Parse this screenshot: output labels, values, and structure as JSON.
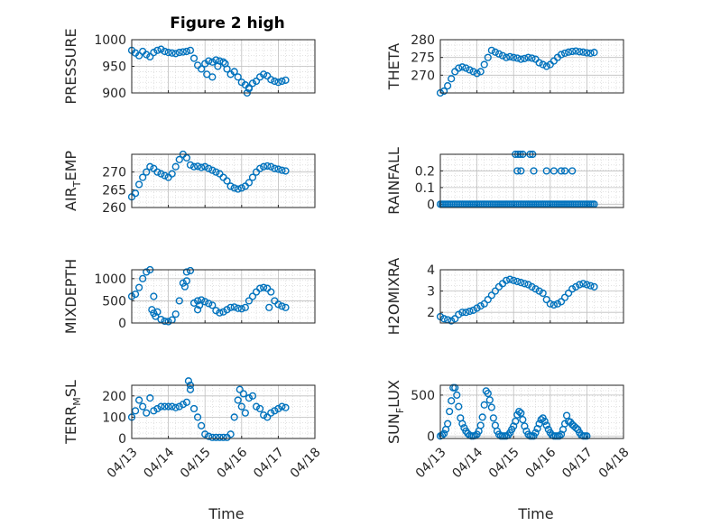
{
  "figure": {
    "title": "Figure 2 high",
    "xlabel": "Time",
    "marker_color": "#0072BD",
    "grid_color": "#bfbfbf",
    "x_tick_labels": [
      "04/13",
      "04/14",
      "04/15",
      "04/16",
      "04/17",
      "04/18"
    ]
  },
  "chart_data": [
    {
      "type": "scatter",
      "name": "pressure",
      "ylabel": "PRESSURE",
      "ylim": [
        900,
        1000
      ],
      "yticks": [
        900,
        950,
        1000
      ],
      "xlim": [
        0,
        5
      ],
      "grid": true,
      "x": [
        0.0,
        0.1,
        0.2,
        0.3,
        0.4,
        0.5,
        0.6,
        0.7,
        0.8,
        0.9,
        1.0,
        1.1,
        1.2,
        1.3,
        1.4,
        1.5,
        1.6,
        1.7,
        1.8,
        1.9,
        2.0,
        2.1,
        2.2,
        2.3,
        2.4,
        2.5,
        2.6,
        2.7,
        2.8,
        2.9,
        3.0,
        3.1,
        3.2,
        3.3,
        3.4,
        3.5,
        3.6,
        3.7,
        3.8,
        3.9,
        4.0,
        4.1,
        4.2,
        2.05,
        2.2,
        2.35,
        2.55,
        3.15,
        3.2
      ],
      "y": [
        980,
        975,
        970,
        978,
        972,
        968,
        976,
        980,
        982,
        978,
        976,
        975,
        974,
        976,
        977,
        978,
        980,
        965,
        952,
        945,
        955,
        960,
        958,
        962,
        960,
        958,
        945,
        935,
        940,
        930,
        920,
        915,
        910,
        918,
        922,
        930,
        935,
        932,
        925,
        922,
        920,
        922,
        924,
        935,
        930,
        950,
        955,
        900,
        908
      ]
    },
    {
      "type": "scatter",
      "name": "theta",
      "ylabel": "THETA",
      "ylim": [
        265,
        280
      ],
      "yticks": [
        270,
        275,
        280
      ],
      "xlim": [
        0,
        5
      ],
      "grid": true,
      "x": [
        0.0,
        0.1,
        0.2,
        0.3,
        0.4,
        0.5,
        0.6,
        0.7,
        0.8,
        0.9,
        1.0,
        1.1,
        1.2,
        1.3,
        1.4,
        1.5,
        1.6,
        1.7,
        1.8,
        1.9,
        2.0,
        2.1,
        2.2,
        2.3,
        2.4,
        2.5,
        2.6,
        2.7,
        2.8,
        2.9,
        3.0,
        3.1,
        3.2,
        3.3,
        3.4,
        3.5,
        3.6,
        3.7,
        3.8,
        3.9,
        4.0,
        4.1,
        4.2
      ],
      "y": [
        265,
        265.5,
        267,
        269,
        271,
        272,
        272.3,
        272,
        271.5,
        271,
        270.5,
        271,
        273,
        275,
        277,
        276.5,
        276,
        275.5,
        275,
        275.2,
        275,
        274.8,
        274.5,
        274.7,
        275,
        274.8,
        274.5,
        273.5,
        273,
        272.5,
        273,
        274,
        275,
        275.8,
        276.2,
        276.5,
        276.7,
        276.8,
        276.6,
        276.5,
        276.3,
        276.2,
        276.4
      ]
    },
    {
      "type": "scatter",
      "name": "air_temp",
      "ylabel": "AIR",
      "ylabel_sub": "T",
      "ylabel_after": "EMP",
      "ylim": [
        260,
        275
      ],
      "yticks": [
        260,
        265,
        270
      ],
      "xlim": [
        0,
        5
      ],
      "grid": true,
      "x": [
        0.0,
        0.1,
        0.2,
        0.3,
        0.4,
        0.5,
        0.6,
        0.7,
        0.8,
        0.9,
        1.0,
        1.1,
        1.2,
        1.3,
        1.4,
        1.5,
        1.6,
        1.7,
        1.8,
        1.9,
        2.0,
        2.1,
        2.2,
        2.3,
        2.4,
        2.5,
        2.6,
        2.7,
        2.8,
        2.9,
        3.0,
        3.1,
        3.2,
        3.3,
        3.4,
        3.5,
        3.6,
        3.7,
        3.8,
        3.9,
        4.0,
        4.1,
        4.2
      ],
      "y": [
        263,
        264,
        266.5,
        268.5,
        270,
        271.5,
        271,
        270,
        269.5,
        269,
        268.5,
        269.5,
        271.5,
        273.5,
        275,
        274,
        272,
        271.5,
        271.6,
        271.3,
        271.5,
        271,
        270.5,
        270,
        269.5,
        268.5,
        267.5,
        266,
        265.5,
        265.2,
        265.5,
        266,
        267,
        268.5,
        270,
        271,
        271.5,
        271.7,
        271.5,
        271,
        270.8,
        270.5,
        270.3
      ]
    },
    {
      "type": "scatter",
      "name": "rainfall",
      "ylabel": "RAINFALL",
      "ylim": [
        -0.02,
        0.3
      ],
      "yticks": [
        0,
        0.1,
        0.2
      ],
      "ytick_labels": [
        "0",
        "0.1",
        "0.2"
      ],
      "xlim": [
        0,
        5
      ],
      "grid": true,
      "x": [
        0.0,
        0.05,
        0.1,
        0.15,
        0.2,
        0.25,
        0.3,
        0.35,
        0.4,
        0.45,
        0.5,
        0.55,
        0.6,
        0.65,
        0.7,
        0.75,
        0.8,
        0.85,
        0.9,
        0.95,
        1.0,
        1.05,
        1.1,
        1.15,
        1.2,
        1.25,
        1.3,
        1.35,
        1.4,
        1.45,
        1.5,
        1.55,
        1.6,
        1.65,
        1.7,
        1.75,
        1.8,
        1.85,
        1.9,
        1.95,
        2.0,
        2.05,
        2.1,
        2.15,
        2.2,
        2.25,
        2.3,
        2.35,
        2.4,
        2.45,
        2.5,
        2.55,
        2.6,
        2.65,
        2.7,
        2.75,
        2.8,
        2.85,
        2.9,
        2.95,
        3.0,
        3.05,
        3.1,
        3.15,
        3.2,
        3.25,
        3.3,
        3.35,
        3.4,
        3.45,
        3.5,
        3.55,
        3.6,
        3.65,
        3.7,
        3.75,
        3.8,
        3.85,
        3.9,
        3.95,
        4.0,
        4.05,
        4.1,
        4.15,
        4.2,
        2.05,
        2.12,
        2.18,
        2.25,
        2.45,
        2.52,
        2.1,
        2.2,
        2.55,
        2.9,
        3.1,
        3.3,
        3.4,
        3.6
      ],
      "y": [
        0,
        0,
        0,
        0,
        0,
        0,
        0,
        0,
        0,
        0,
        0,
        0,
        0,
        0,
        0,
        0,
        0,
        0,
        0,
        0,
        0,
        0,
        0,
        0,
        0,
        0,
        0,
        0,
        0,
        0,
        0,
        0,
        0,
        0,
        0,
        0,
        0,
        0,
        0,
        0,
        0,
        0,
        0,
        0,
        0,
        0,
        0,
        0,
        0,
        0,
        0,
        0,
        0,
        0,
        0,
        0,
        0,
        0,
        0,
        0,
        0,
        0,
        0,
        0,
        0,
        0,
        0,
        0,
        0,
        0,
        0,
        0,
        0,
        0,
        0,
        0,
        0,
        0,
        0,
        0,
        0,
        0,
        0,
        0,
        0,
        0.3,
        0.3,
        0.3,
        0.3,
        0.3,
        0.3,
        0.2,
        0.2,
        0.2,
        0.2,
        0.2,
        0.2,
        0.2,
        0.2
      ]
    },
    {
      "type": "scatter",
      "name": "mixdepth",
      "ylabel": "MIXDEPTH",
      "ylim": [
        0,
        1200
      ],
      "yticks": [
        0,
        500,
        1000
      ],
      "xlim": [
        0,
        5
      ],
      "grid": true,
      "x": [
        0.0,
        0.1,
        0.2,
        0.3,
        0.4,
        0.5,
        0.6,
        0.7,
        0.8,
        0.9,
        1.0,
        1.1,
        1.2,
        1.3,
        1.4,
        1.5,
        1.6,
        1.7,
        1.8,
        1.9,
        2.0,
        2.1,
        2.2,
        2.3,
        2.4,
        2.5,
        2.6,
        2.7,
        2.8,
        2.9,
        3.0,
        3.1,
        3.2,
        3.3,
        3.4,
        3.5,
        3.6,
        3.7,
        3.8,
        3.9,
        4.0,
        4.1,
        4.2,
        0.55,
        0.6,
        0.65,
        1.45,
        1.5,
        1.8,
        1.85,
        3.75
      ],
      "y": [
        600,
        650,
        800,
        1000,
        1150,
        1200,
        600,
        250,
        80,
        40,
        30,
        70,
        200,
        500,
        900,
        1150,
        1180,
        450,
        500,
        520,
        480,
        440,
        400,
        280,
        230,
        250,
        300,
        350,
        360,
        330,
        320,
        350,
        500,
        600,
        700,
        780,
        800,
        780,
        700,
        500,
        420,
        380,
        350,
        300,
        220,
        150,
        820,
        950,
        300,
        400,
        350
      ]
    },
    {
      "type": "scatter",
      "name": "h2omixra",
      "ylabel": "H2OMIXRA",
      "ylim": [
        1.5,
        4
      ],
      "yticks": [
        2,
        3,
        4
      ],
      "xlim": [
        0,
        5
      ],
      "grid": true,
      "x": [
        0.0,
        0.1,
        0.2,
        0.3,
        0.4,
        0.5,
        0.6,
        0.7,
        0.8,
        0.9,
        1.0,
        1.1,
        1.2,
        1.3,
        1.4,
        1.5,
        1.6,
        1.7,
        1.8,
        1.9,
        2.0,
        2.1,
        2.2,
        2.3,
        2.4,
        2.5,
        2.6,
        2.7,
        2.8,
        2.9,
        3.0,
        3.1,
        3.2,
        3.3,
        3.4,
        3.5,
        3.6,
        3.7,
        3.8,
        3.9,
        4.0,
        4.1,
        4.2
      ],
      "y": [
        1.8,
        1.7,
        1.65,
        1.6,
        1.7,
        1.9,
        2.0,
        2.0,
        2.05,
        2.1,
        2.2,
        2.3,
        2.4,
        2.6,
        2.8,
        3.0,
        3.2,
        3.35,
        3.5,
        3.55,
        3.5,
        3.45,
        3.4,
        3.35,
        3.3,
        3.2,
        3.1,
        3.0,
        2.9,
        2.6,
        2.4,
        2.35,
        2.4,
        2.5,
        2.7,
        2.9,
        3.1,
        3.2,
        3.3,
        3.35,
        3.3,
        3.25,
        3.2
      ]
    },
    {
      "type": "scatter",
      "name": "terr_msl",
      "ylabel": "TERR",
      "ylabel_sub": "M",
      "ylabel_after": "SL",
      "ylim": [
        0,
        250
      ],
      "yticks": [
        0,
        100,
        200
      ],
      "xlim": [
        0,
        5
      ],
      "grid": true,
      "x": [
        0.0,
        0.1,
        0.2,
        0.3,
        0.4,
        0.5,
        0.6,
        0.7,
        0.8,
        0.9,
        1.0,
        1.1,
        1.2,
        1.3,
        1.4,
        1.5,
        1.6,
        1.7,
        1.8,
        1.9,
        2.0,
        2.1,
        2.2,
        2.3,
        2.4,
        2.5,
        2.6,
        2.7,
        2.8,
        2.9,
        3.0,
        3.1,
        3.2,
        3.3,
        3.4,
        3.5,
        3.6,
        3.7,
        3.8,
        3.9,
        4.0,
        4.1,
        4.2,
        1.55,
        1.6,
        2.95,
        3.05
      ],
      "y": [
        100,
        130,
        180,
        150,
        120,
        190,
        130,
        140,
        150,
        150,
        150,
        150,
        145,
        150,
        160,
        170,
        230,
        140,
        100,
        60,
        20,
        10,
        5,
        5,
        5,
        5,
        5,
        20,
        100,
        180,
        150,
        120,
        190,
        200,
        150,
        140,
        110,
        100,
        120,
        130,
        140,
        150,
        145,
        270,
        250,
        230,
        210
      ]
    },
    {
      "type": "scatter",
      "name": "sun_flux",
      "ylabel": "SUN",
      "ylabel_sub": "F",
      "ylabel_after": "LUX",
      "ylim": [
        -30,
        620
      ],
      "yticks": [
        0,
        500
      ],
      "xlim": [
        0,
        5
      ],
      "grid": true,
      "x": [
        0.0,
        0.05,
        0.1,
        0.15,
        0.2,
        0.25,
        0.3,
        0.35,
        0.4,
        0.45,
        0.5,
        0.55,
        0.6,
        0.65,
        0.7,
        0.75,
        0.8,
        0.85,
        0.9,
        0.95,
        1.0,
        1.05,
        1.1,
        1.15,
        1.2,
        1.25,
        1.3,
        1.35,
        1.4,
        1.45,
        1.5,
        1.55,
        1.6,
        1.65,
        1.7,
        1.75,
        1.8,
        1.85,
        1.9,
        1.95,
        2.0,
        2.05,
        2.1,
        2.15,
        2.2,
        2.25,
        2.3,
        2.35,
        2.4,
        2.45,
        2.5,
        2.55,
        2.6,
        2.65,
        2.7,
        2.75,
        2.8,
        2.85,
        2.9,
        2.95,
        3.0,
        3.05,
        3.1,
        3.15,
        3.2,
        3.25,
        3.3,
        3.35,
        3.4,
        3.45,
        3.5,
        3.55,
        3.6,
        3.65,
        3.7,
        3.75,
        3.8,
        3.85,
        3.9,
        3.95,
        4.0
      ],
      "y": [
        0,
        10,
        30,
        80,
        150,
        300,
        430,
        590,
        590,
        500,
        360,
        220,
        150,
        100,
        60,
        30,
        10,
        0,
        0,
        5,
        20,
        60,
        130,
        230,
        380,
        550,
        520,
        440,
        350,
        220,
        130,
        60,
        20,
        0,
        0,
        0,
        0,
        10,
        40,
        80,
        120,
        180,
        260,
        300,
        280,
        200,
        120,
        60,
        20,
        0,
        0,
        0,
        40,
        90,
        150,
        200,
        220,
        180,
        130,
        80,
        40,
        10,
        0,
        0,
        0,
        0,
        20,
        80,
        150,
        250,
        180,
        170,
        140,
        120,
        100,
        80,
        40,
        10,
        0,
        0,
        0
      ]
    }
  ]
}
